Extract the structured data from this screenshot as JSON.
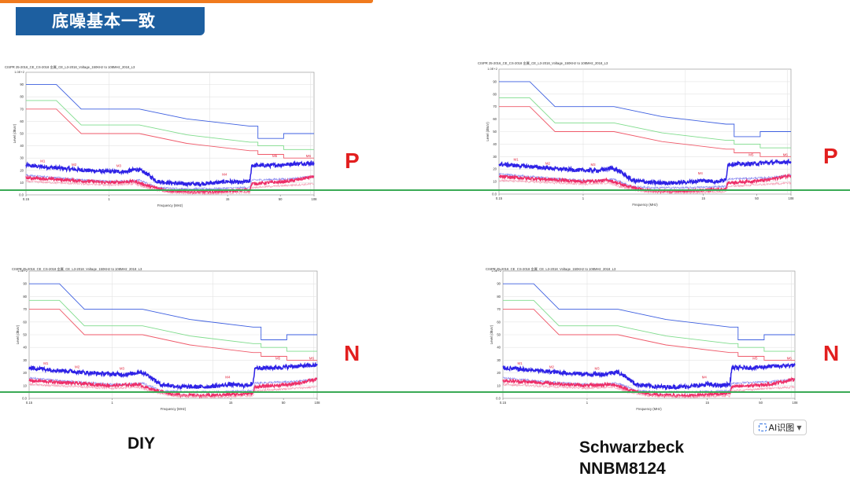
{
  "slide": {
    "title": "底噪基本一致",
    "caption_left": "DIY",
    "caption_right_line1": "Schwarzbeck",
    "caption_right_line2": "NNBM8124",
    "ai_button_label": "AI识图",
    "line_color": "#3aaa55",
    "accent_color": "#1d5fa0"
  },
  "chart_data": [
    {
      "id": "diy-p",
      "type": "line",
      "side_label": "P",
      "title": "CISPR 25-2016_CE_CS-2018 金属_CE_L3-2018_Voltage_150KHz to 108MHz_2018_L3",
      "xlabel": "Frequency (MHz)",
      "ylabel": "Level (dBuV)",
      "yunit_label": "1.0E+2",
      "xscale": "log",
      "xlim": [
        0.15,
        108
      ],
      "ylim": [
        0,
        100
      ],
      "xticks": [
        "0.15",
        "1",
        "15",
        "50",
        "108"
      ],
      "yticks": [
        "0.0",
        "10",
        "20",
        "30",
        "40",
        "50",
        "60",
        "70",
        "80",
        "90"
      ],
      "markers": [
        "M1",
        "M2",
        "M3",
        "M4",
        "M5",
        "M6"
      ]
    },
    {
      "id": "sch-p",
      "type": "line",
      "side_label": "P",
      "title": "CISPR 25-2016_CE_CS-2018 金属_CE_L3-2018_Voltage_150KHz to 108MHz_2018_L3",
      "xlabel": "Frequency (MHz)",
      "ylabel": "Level (dBuV)",
      "yunit_label": "1.0E+2",
      "xscale": "log",
      "xlim": [
        0.15,
        108
      ],
      "ylim": [
        0,
        100
      ],
      "xticks": [
        "0.15",
        "1",
        "15",
        "50",
        "108"
      ],
      "yticks": [
        "0.0",
        "10",
        "20",
        "30",
        "40",
        "50",
        "60",
        "70",
        "80",
        "90"
      ],
      "markers": [
        "M1",
        "M2",
        "M3",
        "M4",
        "M5",
        "M6"
      ]
    },
    {
      "id": "diy-n",
      "type": "line",
      "side_label": "N",
      "title": "CISPR 25-2016_CE_CS-2018 金属_CE_L3-2018_Voltage_150KHz to 108MHz_2018_L3",
      "xlabel": "Frequency (MHz)",
      "ylabel": "Level (dBuV)",
      "yunit_label": "1.0E+2",
      "xscale": "log",
      "xlim": [
        0.15,
        108
      ],
      "ylim": [
        0,
        100
      ],
      "xticks": [
        "0.15",
        "1",
        "15",
        "50",
        "108"
      ],
      "yticks": [
        "0.0",
        "10",
        "20",
        "30",
        "40",
        "50",
        "60",
        "70",
        "80",
        "90"
      ],
      "markers": [
        "M1",
        "M2",
        "M3",
        "M4",
        "M5",
        "M6"
      ]
    },
    {
      "id": "sch-n",
      "type": "line",
      "side_label": "N",
      "title": "CISPR 25-2016_CE_CS-2018 金属_CE_L3-2018_Voltage_150KHz to 108MHz_2018_L3",
      "xlabel": "Frequency (MHz)",
      "ylabel": "Level (dBuV)",
      "yunit_label": "1.0E+2",
      "xscale": "log",
      "xlim": [
        0.15,
        108
      ],
      "ylim": [
        0,
        100
      ],
      "xticks": [
        "0.15",
        "1",
        "15",
        "50",
        "108"
      ],
      "yticks": [
        "0.0",
        "10",
        "20",
        "30",
        "40",
        "50",
        "60",
        "70",
        "80",
        "90"
      ],
      "markers": [
        "M1",
        "M2",
        "M3",
        "M4",
        "M5",
        "M6"
      ]
    }
  ],
  "limit_lines": [
    {
      "name": "",
      "color": "#3d5fe0",
      "points": [
        [
          0.15,
          90
        ],
        [
          0.3,
          90
        ],
        [
          0.53,
          70
        ],
        [
          2,
          70
        ],
        [
          5.9,
          62
        ],
        [
          25,
          56
        ],
        [
          30,
          56
        ],
        [
          30,
          46
        ],
        [
          54,
          46
        ],
        [
          54,
          50
        ],
        [
          108,
          50
        ]
      ]
    },
    {
      "name": "",
      "color": "#7fdc8c",
      "points": [
        [
          0.15,
          77
        ],
        [
          0.3,
          77
        ],
        [
          0.53,
          57
        ],
        [
          2,
          57
        ],
        [
          5.9,
          49
        ],
        [
          25,
          43
        ],
        [
          30,
          43
        ],
        [
          30,
          40
        ],
        [
          54,
          40
        ],
        [
          54,
          37
        ],
        [
          108,
          37
        ]
      ]
    },
    {
      "name": "",
      "color": "#ef5a6a",
      "points": [
        [
          0.15,
          70
        ],
        [
          0.3,
          70
        ],
        [
          0.53,
          50
        ],
        [
          2,
          50
        ],
        [
          5.9,
          42
        ],
        [
          25,
          36
        ],
        [
          30,
          36
        ],
        [
          30,
          33
        ],
        [
          54,
          33
        ],
        [
          54,
          30
        ],
        [
          108,
          30
        ]
      ]
    }
  ],
  "traces": [
    {
      "name": "",
      "color": "#2e22e6",
      "points": [
        [
          0.15,
          24
        ],
        [
          0.3,
          22
        ],
        [
          0.6,
          20
        ],
        [
          1,
          19
        ],
        [
          1.5,
          19
        ],
        [
          1.9,
          21
        ],
        [
          2.3,
          18
        ],
        [
          3,
          11
        ],
        [
          5,
          9
        ],
        [
          8,
          9
        ],
        [
          12,
          10
        ],
        [
          15,
          11
        ],
        [
          20,
          10
        ],
        [
          24,
          11
        ],
        [
          25,
          11
        ],
        [
          26,
          24
        ],
        [
          40,
          24
        ],
        [
          60,
          25
        ],
        [
          108,
          26
        ]
      ]
    },
    {
      "name": "",
      "color": "#8a8af0",
      "points": [
        [
          0.15,
          16
        ],
        [
          0.3,
          14
        ],
        [
          0.6,
          12
        ],
        [
          1,
          11
        ],
        [
          1.5,
          11
        ],
        [
          2,
          12
        ],
        [
          2.3,
          10
        ],
        [
          3,
          6
        ],
        [
          5,
          5
        ],
        [
          10,
          5
        ],
        [
          24,
          6
        ],
        [
          25,
          6
        ],
        [
          26,
          12
        ],
        [
          60,
          13
        ],
        [
          108,
          15
        ]
      ]
    },
    {
      "name": "",
      "color": "#ee2e68",
      "points": [
        [
          0.15,
          14
        ],
        [
          0.4,
          12
        ],
        [
          1,
          10
        ],
        [
          1.8,
          11
        ],
        [
          2.5,
          7
        ],
        [
          4,
          3
        ],
        [
          8,
          2
        ],
        [
          15,
          3
        ],
        [
          24,
          4
        ],
        [
          25,
          4
        ],
        [
          26,
          9
        ],
        [
          60,
          11
        ],
        [
          108,
          15
        ]
      ]
    },
    {
      "name": "",
      "color": "#f5a0b6",
      "points": [
        [
          0.15,
          11
        ],
        [
          0.5,
          9
        ],
        [
          1,
          8
        ],
        [
          1.8,
          9
        ],
        [
          2.5,
          5
        ],
        [
          4,
          2
        ],
        [
          10,
          1
        ],
        [
          24,
          2
        ],
        [
          25,
          2
        ],
        [
          26,
          6
        ],
        [
          108,
          9
        ]
      ]
    }
  ],
  "marker_positions": [
    {
      "label": "M1",
      "x": 0.22,
      "y": 26
    },
    {
      "label": "M2",
      "x": 0.45,
      "y": 23
    },
    {
      "label": "M3",
      "x": 1.25,
      "y": 22
    },
    {
      "label": "M4",
      "x": 14,
      "y": 15
    },
    {
      "label": "M5",
      "x": 44,
      "y": 30
    },
    {
      "label": "M6",
      "x": 95,
      "y": 30
    }
  ]
}
